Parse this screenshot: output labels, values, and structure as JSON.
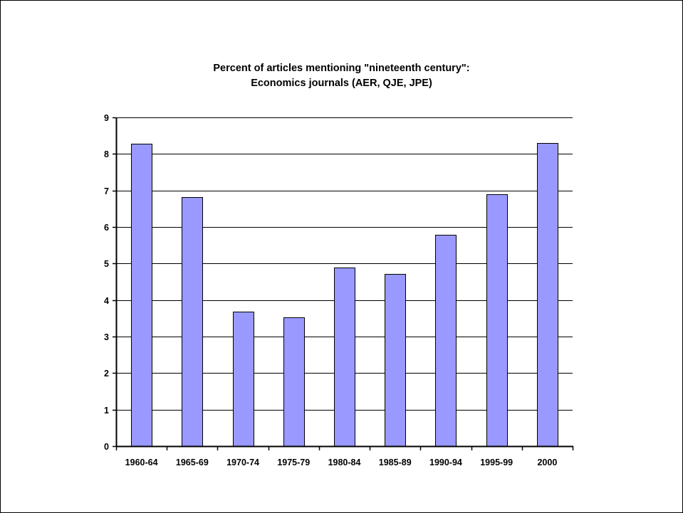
{
  "chart_data": {
    "type": "bar",
    "title": "Percent of articles mentioning \"nineteenth century\":",
    "subtitle": "Economics journals (AER, QJE, JPE)",
    "xlabel": "",
    "ylabel": "",
    "categories": [
      "1960-64",
      "1965-69",
      "1970-74",
      "1975-79",
      "1980-84",
      "1985-89",
      "1990-94",
      "1995-99",
      "2000"
    ],
    "values": [
      8.27,
      6.82,
      3.69,
      3.53,
      4.89,
      4.72,
      5.78,
      6.89,
      8.3
    ],
    "ylim": [
      0,
      9
    ],
    "yticks": [
      "0",
      "1",
      "2",
      "3",
      "4",
      "5",
      "6",
      "7",
      "8",
      "9"
    ],
    "grid": true,
    "legend": "none",
    "colors": {
      "bar_fill": "#9999ff",
      "bar_stroke": "#000000",
      "grid": "#000000",
      "axis": "#000000",
      "background": "#ffffff"
    }
  }
}
